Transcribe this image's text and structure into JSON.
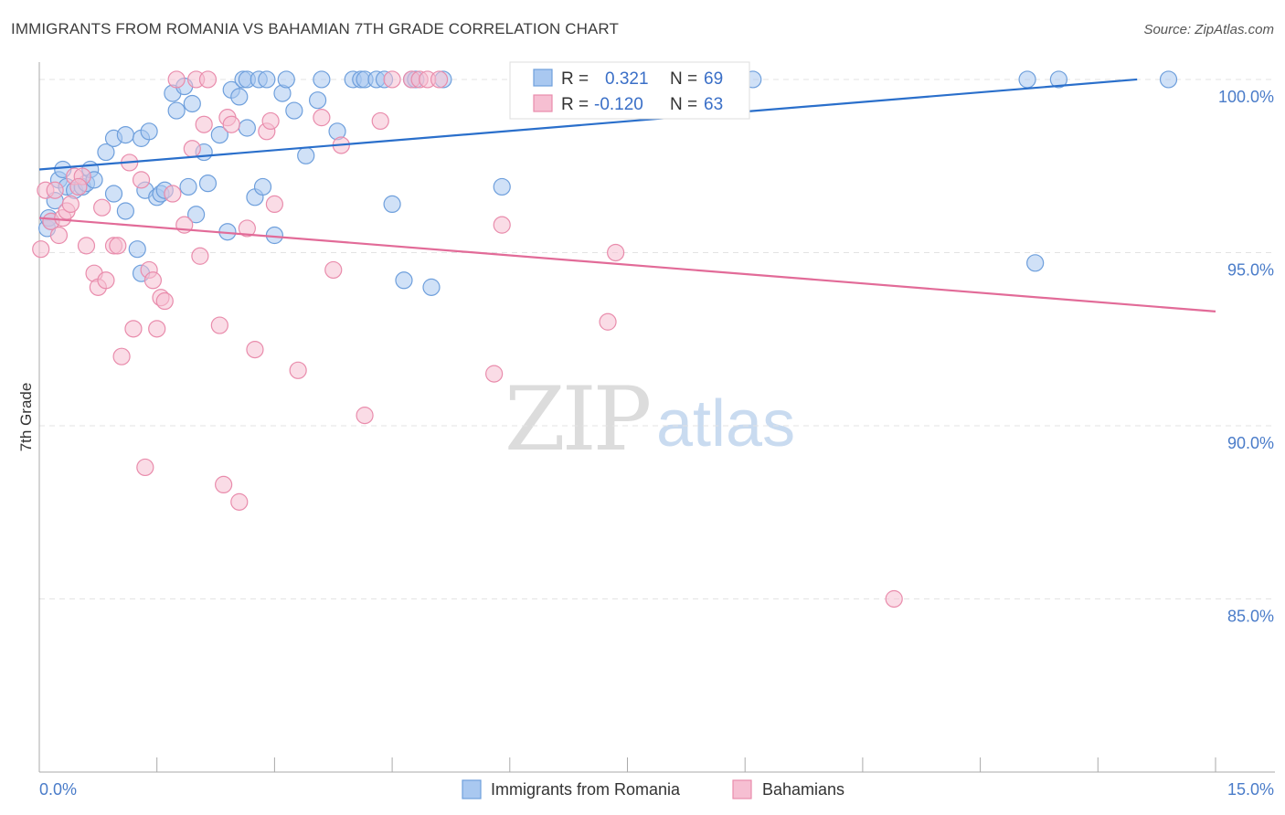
{
  "title": "IMMIGRANTS FROM ROMANIA VS BAHAMIAN 7TH GRADE CORRELATION CHART",
  "source": "Source: ZipAtlas.com",
  "watermark": {
    "zip": "ZIP",
    "atlas": "atlas"
  },
  "colors": {
    "blue_fill": "#a9c8f0",
    "blue_stroke": "#6e9fdc",
    "blue_line": "#2a6fcb",
    "pink_fill": "#f6bfd2",
    "pink_stroke": "#e98cac",
    "pink_line": "#e26b98",
    "axis_text": "#4a7cc9",
    "grid": "#e3e3e3"
  },
  "stats": {
    "romania": {
      "r_label": "R =",
      "r_value": "0.321",
      "n_label": "N =",
      "n_value": "69"
    },
    "bahamians": {
      "r_label": "R =",
      "r_value": "-0.120",
      "n_label": "N =",
      "n_value": "63"
    }
  },
  "chart_data": {
    "type": "scatter",
    "title": "IMMIGRANTS FROM ROMANIA VS BAHAMIAN 7TH GRADE CORRELATION CHART",
    "xlabel": "",
    "ylabel": "7th Grade",
    "xlim": [
      0,
      15
    ],
    "ylim": [
      80,
      100.5
    ],
    "x_tick_labels": {
      "left": "0.0%",
      "right": "15.0%"
    },
    "y_ticks": [
      {
        "value": 100,
        "label": "100.0%"
      },
      {
        "value": 95,
        "label": "95.0%"
      },
      {
        "value": 90,
        "label": "90.0%"
      },
      {
        "value": 85,
        "label": "85.0%"
      }
    ],
    "grid": "horizontal dashed",
    "legend_position": "bottom-center",
    "series": [
      {
        "name": "Immigrants from Romania",
        "color": "#6e9fdc",
        "trend": {
          "x": [
            0,
            14.0
          ],
          "y": [
            97.4,
            100.0
          ]
        },
        "points": [
          [
            0.1,
            95.7
          ],
          [
            0.12,
            96.0
          ],
          [
            0.15,
            95.9
          ],
          [
            0.2,
            96.5
          ],
          [
            0.25,
            97.1
          ],
          [
            0.3,
            97.4
          ],
          [
            0.35,
            96.9
          ],
          [
            0.45,
            96.8
          ],
          [
            0.55,
            96.9
          ],
          [
            0.6,
            97.0
          ],
          [
            0.65,
            97.4
          ],
          [
            0.7,
            97.1
          ],
          [
            0.85,
            97.9
          ],
          [
            0.95,
            98.3
          ],
          [
            1.1,
            98.4
          ],
          [
            1.3,
            98.3
          ],
          [
            1.4,
            98.5
          ],
          [
            0.95,
            96.7
          ],
          [
            1.1,
            96.2
          ],
          [
            1.25,
            95.1
          ],
          [
            1.3,
            94.4
          ],
          [
            1.35,
            96.8
          ],
          [
            1.5,
            96.6
          ],
          [
            1.55,
            96.7
          ],
          [
            1.6,
            96.8
          ],
          [
            1.7,
            99.6
          ],
          [
            1.75,
            99.1
          ],
          [
            1.85,
            99.8
          ],
          [
            1.9,
            96.9
          ],
          [
            1.95,
            99.3
          ],
          [
            2.0,
            96.1
          ],
          [
            2.1,
            97.9
          ],
          [
            2.15,
            97.0
          ],
          [
            2.3,
            98.4
          ],
          [
            2.4,
            95.6
          ],
          [
            2.45,
            99.7
          ],
          [
            2.55,
            99.5
          ],
          [
            2.65,
            98.6
          ],
          [
            2.75,
            96.6
          ],
          [
            2.85,
            96.9
          ],
          [
            2.6,
            100.0
          ],
          [
            2.65,
            100.0
          ],
          [
            2.8,
            100.0
          ],
          [
            2.9,
            100.0
          ],
          [
            3.1,
            99.6
          ],
          [
            3.15,
            100.0
          ],
          [
            3.0,
            95.5
          ],
          [
            3.25,
            99.1
          ],
          [
            3.4,
            97.8
          ],
          [
            3.6,
            100.0
          ],
          [
            3.55,
            99.4
          ],
          [
            3.8,
            98.5
          ],
          [
            4.0,
            100.0
          ],
          [
            4.1,
            100.0
          ],
          [
            4.15,
            100.0
          ],
          [
            4.3,
            100.0
          ],
          [
            4.4,
            100.0
          ],
          [
            4.5,
            96.4
          ],
          [
            4.65,
            94.2
          ],
          [
            4.75,
            100.0
          ],
          [
            4.8,
            100.0
          ],
          [
            5.0,
            94.0
          ],
          [
            5.15,
            100.0
          ],
          [
            5.9,
            96.9
          ],
          [
            9.1,
            100.0
          ],
          [
            12.6,
            100.0
          ],
          [
            12.7,
            94.7
          ],
          [
            13.0,
            100.0
          ],
          [
            14.4,
            100.0
          ]
        ]
      },
      {
        "name": "Bahamians",
        "color": "#e98cac",
        "trend": {
          "x": [
            0,
            15.0
          ],
          "y": [
            96.0,
            93.3
          ]
        },
        "points": [
          [
            0.02,
            95.1
          ],
          [
            0.08,
            96.8
          ],
          [
            0.15,
            95.9
          ],
          [
            0.2,
            96.8
          ],
          [
            0.25,
            95.5
          ],
          [
            0.3,
            96.0
          ],
          [
            0.35,
            96.2
          ],
          [
            0.4,
            96.4
          ],
          [
            0.45,
            97.2
          ],
          [
            0.55,
            97.2
          ],
          [
            0.6,
            95.2
          ],
          [
            0.7,
            94.4
          ],
          [
            0.75,
            94.0
          ],
          [
            0.8,
            96.3
          ],
          [
            0.85,
            94.2
          ],
          [
            0.95,
            95.2
          ],
          [
            1.05,
            92.0
          ],
          [
            1.15,
            97.6
          ],
          [
            1.2,
            92.8
          ],
          [
            1.3,
            97.1
          ],
          [
            1.35,
            88.8
          ],
          [
            1.4,
            94.5
          ],
          [
            1.45,
            94.2
          ],
          [
            1.5,
            92.8
          ],
          [
            1.55,
            93.7
          ],
          [
            1.6,
            93.6
          ],
          [
            1.7,
            96.7
          ],
          [
            1.75,
            100.0
          ],
          [
            1.85,
            95.8
          ],
          [
            1.95,
            98.0
          ],
          [
            2.0,
            100.0
          ],
          [
            2.05,
            94.9
          ],
          [
            2.1,
            98.7
          ],
          [
            2.15,
            100.0
          ],
          [
            2.3,
            92.9
          ],
          [
            2.35,
            88.3
          ],
          [
            2.4,
            98.9
          ],
          [
            2.45,
            98.7
          ],
          [
            2.55,
            87.8
          ],
          [
            2.65,
            95.7
          ],
          [
            2.75,
            92.2
          ],
          [
            2.9,
            98.5
          ],
          [
            2.95,
            98.8
          ],
          [
            3.0,
            96.4
          ],
          [
            3.3,
            91.6
          ],
          [
            3.6,
            98.9
          ],
          [
            3.75,
            94.5
          ],
          [
            3.85,
            98.1
          ],
          [
            4.15,
            90.3
          ],
          [
            4.35,
            98.8
          ],
          [
            4.5,
            100.0
          ],
          [
            4.75,
            100.0
          ],
          [
            4.85,
            100.0
          ],
          [
            4.95,
            100.0
          ],
          [
            5.1,
            100.0
          ],
          [
            5.8,
            91.5
          ],
          [
            5.9,
            95.8
          ],
          [
            7.25,
            93.0
          ],
          [
            7.35,
            95.0
          ],
          [
            7.45,
            100.0
          ],
          [
            10.9,
            85.0
          ],
          [
            0.5,
            96.9
          ],
          [
            1.0,
            95.2
          ]
        ]
      }
    ]
  },
  "legend": [
    {
      "label": "Immigrants from Romania",
      "series": 0
    },
    {
      "label": "Bahamians",
      "series": 1
    }
  ]
}
